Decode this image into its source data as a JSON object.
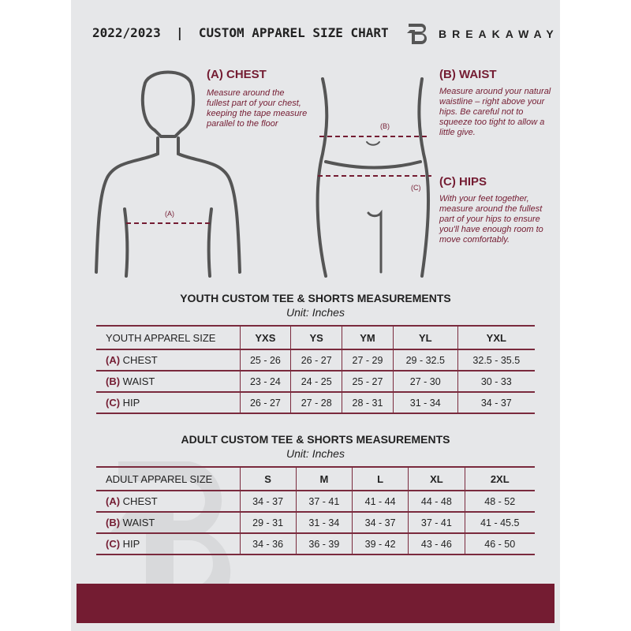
{
  "header": {
    "title": "2022/2023  |  CUSTOM APPAREL SIZE CHART",
    "brand": "BREAKAWAY"
  },
  "guide": {
    "chest": {
      "heading": "(A) CHEST",
      "text": "Measure around the fullest part of your chest, keeping the tape measure parallel to the floor",
      "marker": "(A)"
    },
    "waist": {
      "heading": "(B) WAIST",
      "text": "Measure around your natural waistline – right above your hips. Be careful not to squeeze too tight to allow a little give.",
      "marker": "(B)"
    },
    "hips": {
      "heading": "(C) HIPS",
      "text": "With your feet together, measure around the fullest part of your hips to ensure you'll have enough room to move comfortably.",
      "marker": "(C)"
    }
  },
  "accent": "#741c32",
  "youth": {
    "title": "YOUTH CUSTOM TEE & SHORTS MEASUREMENTS",
    "unit": "Unit: Inches",
    "header": [
      "YOUTH APPAREL SIZE",
      "YXS",
      "YS",
      "YM",
      "YL",
      "YXL"
    ],
    "rows": [
      {
        "letter": "(A)",
        "label": "CHEST",
        "values": [
          "25 - 26",
          "26 - 27",
          "27 - 29",
          "29 - 32.5",
          "32.5 - 35.5"
        ]
      },
      {
        "letter": "(B)",
        "label": "WAIST",
        "values": [
          "23 - 24",
          "24 - 25",
          "25 - 27",
          "27 - 30",
          "30 - 33"
        ]
      },
      {
        "letter": "(C)",
        "label": "HIP",
        "values": [
          "26 - 27",
          "27 - 28",
          "28 - 31",
          "31 - 34",
          "34 - 37"
        ]
      }
    ]
  },
  "adult": {
    "title": "ADULT CUSTOM TEE & SHORTS MEASUREMENTS",
    "unit": "Unit: Inches",
    "header": [
      "ADULT APPAREL SIZE",
      "S",
      "M",
      "L",
      "XL",
      "2XL"
    ],
    "rows": [
      {
        "letter": "(A)",
        "label": "CHEST",
        "values": [
          "34 - 37",
          "37 - 41",
          "41 - 44",
          "44 - 48",
          "48 - 52"
        ]
      },
      {
        "letter": "(B)",
        "label": "WAIST",
        "values": [
          "29 - 31",
          "31 - 34",
          "34 - 37",
          "37 - 41",
          "41 - 45.5"
        ]
      },
      {
        "letter": "(C)",
        "label": "HIP",
        "values": [
          "34 - 36",
          "36 - 39",
          "39 - 42",
          "43 - 46",
          "46 - 50"
        ]
      }
    ]
  }
}
